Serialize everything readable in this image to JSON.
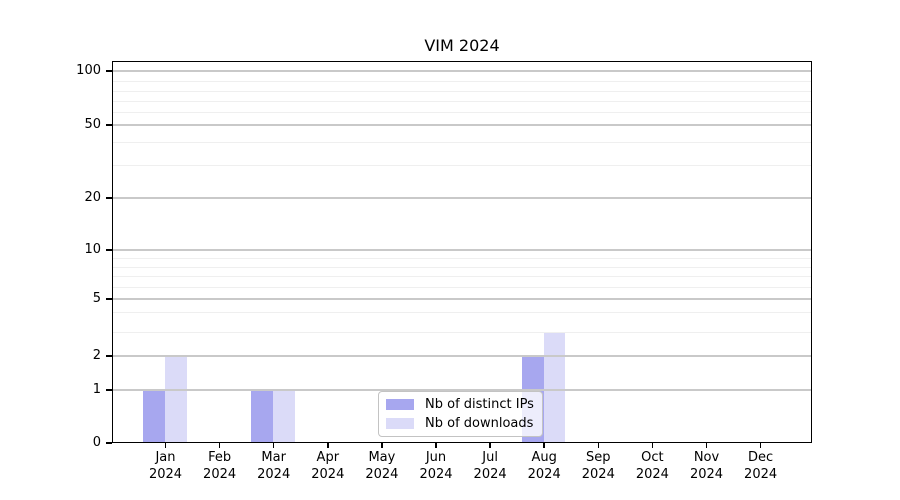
{
  "title": "VIM 2024",
  "colors": {
    "distinct_ips": "#a7a7ef",
    "downloads": "#dbdbf8",
    "axis": "#000000",
    "grid_major": "#c9c9c9",
    "grid_minor": "#efefef",
    "legend_border": "#c3c3c3",
    "text": "#000000"
  },
  "legend": {
    "items": [
      {
        "label": "Nb of distinct IPs",
        "color": "#a7a7ef"
      },
      {
        "label": "Nb of downloads",
        "color": "#dbdbf8"
      }
    ]
  },
  "chart_data": {
    "type": "bar",
    "title": "VIM 2024",
    "categories": [
      "Jan 2024",
      "Feb 2024",
      "Mar 2024",
      "Apr 2024",
      "May 2024",
      "Jun 2024",
      "Jul 2024",
      "Aug 2024",
      "Sep 2024",
      "Oct 2024",
      "Nov 2024",
      "Dec 2024"
    ],
    "series": [
      {
        "name": "Nb of distinct IPs",
        "color": "#a7a7ef",
        "values": [
          1,
          0,
          1,
          0,
          0,
          0,
          0,
          2,
          0,
          0,
          0,
          0
        ]
      },
      {
        "name": "Nb of downloads",
        "color": "#dbdbf8",
        "values": [
          2,
          0,
          1,
          0,
          0,
          0,
          0,
          3,
          0,
          0,
          0,
          0
        ]
      }
    ],
    "xlabel": "",
    "ylabel": "",
    "y_scale": "symlog",
    "y_major_ticks": [
      0,
      1,
      2,
      5,
      10,
      20,
      50,
      100
    ],
    "y_minor_gridlines": [
      3,
      4,
      6,
      7,
      8,
      9,
      30,
      40,
      60,
      70,
      80,
      90
    ],
    "ylim": [
      0,
      112
    ],
    "grid": "both",
    "legend_position": "lower-center"
  }
}
